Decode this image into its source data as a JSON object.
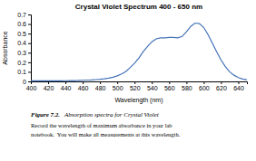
{
  "chart_data": {
    "type": "line",
    "title": "Crystal Violet Spectrum 400 - 650 nm",
    "xlabel": "Wavelength (nm)",
    "ylabel": "Absorbance",
    "annotations": [
      "Figure 7.2.",
      "Absorption spectra for Crystal Violet",
      "Record the wavelength of maximum absorbance in your lab",
      "notebook.  You will make all measurements at this wavelength."
    ],
    "x": [
      400,
      405,
      410,
      415,
      420,
      425,
      430,
      435,
      440,
      445,
      450,
      455,
      460,
      465,
      470,
      475,
      480,
      485,
      490,
      495,
      500,
      505,
      510,
      515,
      520,
      525,
      530,
      535,
      540,
      545,
      550,
      555,
      560,
      565,
      570,
      575,
      580,
      585,
      590,
      595,
      600,
      605,
      610,
      615,
      620,
      625,
      630,
      635,
      640,
      645,
      650
    ],
    "values": [
      0.005,
      0.005,
      0.005,
      0.005,
      0.005,
      0.005,
      0.005,
      0.006,
      0.007,
      0.008,
      0.009,
      0.01,
      0.012,
      0.014,
      0.016,
      0.019,
      0.022,
      0.027,
      0.034,
      0.044,
      0.058,
      0.078,
      0.105,
      0.145,
      0.19,
      0.245,
      0.31,
      0.365,
      0.415,
      0.445,
      0.455,
      0.455,
      0.46,
      0.46,
      0.455,
      0.47,
      0.52,
      0.575,
      0.61,
      0.605,
      0.565,
      0.49,
      0.4,
      0.31,
      0.225,
      0.155,
      0.1,
      0.065,
      0.04,
      0.025,
      0.018
    ],
    "color": "#4472b8",
    "xlim": [
      400,
      650
    ],
    "ylim": [
      0,
      0.7
    ],
    "xticks": [
      400,
      420,
      440,
      460,
      480,
      500,
      520,
      540,
      560,
      580,
      600,
      620,
      640
    ],
    "yticks": [
      0,
      0.1,
      0.2,
      0.3,
      0.4,
      0.5,
      0.6,
      0.7
    ],
    "grid": false
  }
}
